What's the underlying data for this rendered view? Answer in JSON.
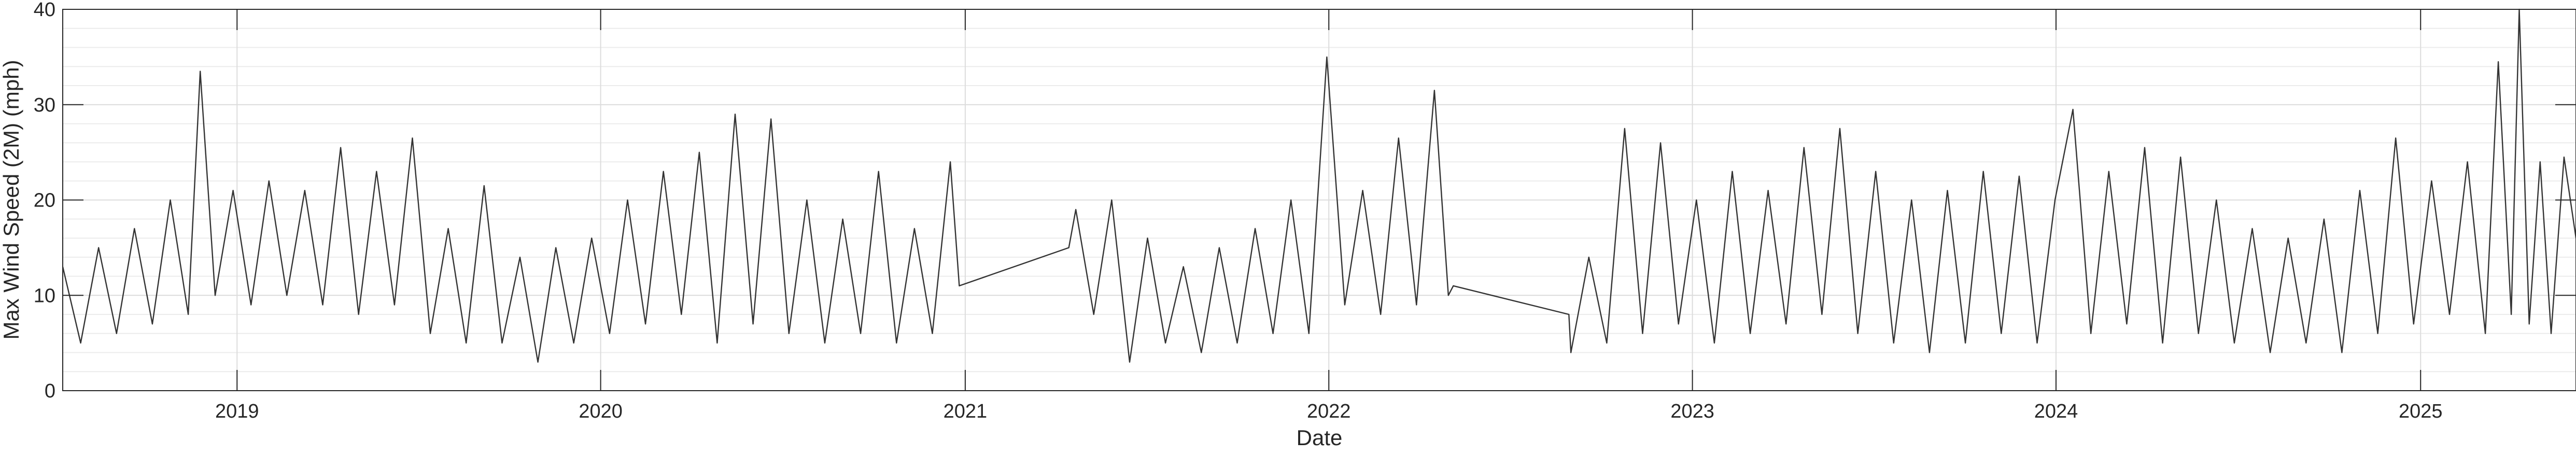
{
  "chart_data": {
    "type": "line",
    "title": "",
    "xlabel": "Date",
    "ylabel": "Max Wind Speed (2M) (mph)",
    "ylim": [
      0,
      40
    ],
    "xlim": [
      "2018-07-10",
      "2025-06-06"
    ],
    "y_ticks": [
      "0",
      "10",
      "20",
      "30",
      "40"
    ],
    "x_ticks": [
      {
        "date": "2019-01-01",
        "label": "2019"
      },
      {
        "date": "2020-01-01",
        "label": "2020"
      },
      {
        "date": "2021-01-01",
        "label": "2021"
      },
      {
        "date": "2022-01-01",
        "label": "2022"
      },
      {
        "date": "2023-01-01",
        "label": "2023"
      },
      {
        "date": "2024-01-01",
        "label": "2024"
      },
      {
        "date": "2025-01-01",
        "label": "2025"
      }
    ],
    "grid": true,
    "minor_grid": true,
    "line_color": "#333333",
    "series": [
      {
        "values": [
          [
            "2018-07-10",
            13
          ],
          [
            "2018-07-28",
            5
          ],
          [
            "2018-08-15",
            15
          ],
          [
            "2018-09-02",
            6
          ],
          [
            "2018-09-20",
            17
          ],
          [
            "2018-10-08",
            7
          ],
          [
            "2018-10-26",
            20
          ],
          [
            "2018-11-13",
            8
          ],
          [
            "2018-11-25",
            33.5
          ],
          [
            "2018-12-10",
            10
          ],
          [
            "2018-12-28",
            21
          ],
          [
            "2019-01-15",
            9
          ],
          [
            "2019-02-02",
            22
          ],
          [
            "2019-02-20",
            10
          ],
          [
            "2019-03-10",
            21
          ],
          [
            "2019-03-28",
            9
          ],
          [
            "2019-04-15",
            25.5
          ],
          [
            "2019-05-03",
            8
          ],
          [
            "2019-05-21",
            23
          ],
          [
            "2019-06-08",
            9
          ],
          [
            "2019-06-26",
            26.5
          ],
          [
            "2019-07-14",
            6
          ],
          [
            "2019-08-01",
            17
          ],
          [
            "2019-08-19",
            5
          ],
          [
            "2019-09-06",
            21.5
          ],
          [
            "2019-09-24",
            5
          ],
          [
            "2019-10-12",
            14
          ],
          [
            "2019-10-30",
            3
          ],
          [
            "2019-11-17",
            15
          ],
          [
            "2019-12-05",
            5
          ],
          [
            "2019-12-23",
            16
          ],
          [
            "2020-01-10",
            6
          ],
          [
            "2020-01-28",
            20
          ],
          [
            "2020-02-15",
            7
          ],
          [
            "2020-03-04",
            23
          ],
          [
            "2020-03-22",
            8
          ],
          [
            "2020-04-09",
            25
          ],
          [
            "2020-04-27",
            5
          ],
          [
            "2020-05-15",
            29
          ],
          [
            "2020-06-02",
            7
          ],
          [
            "2020-06-20",
            28.5
          ],
          [
            "2020-07-08",
            6
          ],
          [
            "2020-07-26",
            20
          ],
          [
            "2020-08-13",
            5
          ],
          [
            "2020-08-31",
            18
          ],
          [
            "2020-09-18",
            6
          ],
          [
            "2020-10-06",
            23
          ],
          [
            "2020-10-24",
            5
          ],
          [
            "2020-11-11",
            17
          ],
          [
            "2020-11-29",
            6
          ],
          [
            "2020-12-17",
            24
          ],
          [
            "2020-12-26",
            11
          ],
          [
            "2021-04-15",
            15
          ],
          [
            "2021-04-22",
            19
          ],
          [
            "2021-05-10",
            8
          ],
          [
            "2021-05-28",
            20
          ],
          [
            "2021-06-15",
            3
          ],
          [
            "2021-07-03",
            16
          ],
          [
            "2021-07-21",
            5
          ],
          [
            "2021-08-08",
            13
          ],
          [
            "2021-08-26",
            4
          ],
          [
            "2021-09-13",
            15
          ],
          [
            "2021-10-01",
            5
          ],
          [
            "2021-10-19",
            17
          ],
          [
            "2021-11-06",
            6
          ],
          [
            "2021-11-24",
            20
          ],
          [
            "2021-12-12",
            6
          ],
          [
            "2021-12-30",
            35
          ],
          [
            "2022-01-17",
            9
          ],
          [
            "2022-02-04",
            21
          ],
          [
            "2022-02-22",
            8
          ],
          [
            "2022-03-12",
            26.5
          ],
          [
            "2022-03-30",
            9
          ],
          [
            "2022-04-17",
            31.5
          ],
          [
            "2022-05-01",
            10
          ],
          [
            "2022-05-06",
            11
          ],
          [
            "2022-08-30",
            8
          ],
          [
            "2022-09-01",
            4
          ],
          [
            "2022-09-19",
            14
          ],
          [
            "2022-10-07",
            5
          ],
          [
            "2022-10-25",
            27.5
          ],
          [
            "2022-11-12",
            6
          ],
          [
            "2022-11-30",
            26
          ],
          [
            "2022-12-18",
            7
          ],
          [
            "2023-01-05",
            20
          ],
          [
            "2023-01-23",
            5
          ],
          [
            "2023-02-10",
            23
          ],
          [
            "2023-02-28",
            6
          ],
          [
            "2023-03-18",
            21
          ],
          [
            "2023-04-05",
            7
          ],
          [
            "2023-04-23",
            25.5
          ],
          [
            "2023-05-11",
            8
          ],
          [
            "2023-05-29",
            27.5
          ],
          [
            "2023-06-16",
            6
          ],
          [
            "2023-07-04",
            23
          ],
          [
            "2023-07-22",
            5
          ],
          [
            "2023-08-09",
            20
          ],
          [
            "2023-08-27",
            4
          ],
          [
            "2023-09-14",
            21
          ],
          [
            "2023-10-02",
            5
          ],
          [
            "2023-10-20",
            23
          ],
          [
            "2023-11-07",
            6
          ],
          [
            "2023-11-25",
            22.5
          ],
          [
            "2023-12-13",
            5
          ],
          [
            "2023-12-31",
            20
          ],
          [
            "2024-01-18",
            29.5
          ],
          [
            "2024-02-05",
            6
          ],
          [
            "2024-02-23",
            23
          ],
          [
            "2024-03-12",
            7
          ],
          [
            "2024-03-30",
            25.5
          ],
          [
            "2024-04-17",
            5
          ],
          [
            "2024-05-05",
            24.5
          ],
          [
            "2024-05-23",
            6
          ],
          [
            "2024-06-10",
            20
          ],
          [
            "2024-06-28",
            5
          ],
          [
            "2024-07-16",
            17
          ],
          [
            "2024-08-03",
            4
          ],
          [
            "2024-08-21",
            16
          ],
          [
            "2024-09-08",
            5
          ],
          [
            "2024-09-26",
            18
          ],
          [
            "2024-10-14",
            4
          ],
          [
            "2024-11-01",
            21
          ],
          [
            "2024-11-19",
            6
          ],
          [
            "2024-12-07",
            26.5
          ],
          [
            "2024-12-25",
            7
          ],
          [
            "2025-01-12",
            22
          ],
          [
            "2025-01-30",
            8
          ],
          [
            "2025-02-17",
            24
          ],
          [
            "2025-03-07",
            6
          ],
          [
            "2025-03-20",
            34.5
          ],
          [
            "2025-04-02",
            8
          ],
          [
            "2025-04-10",
            40
          ],
          [
            "2025-04-20",
            7
          ],
          [
            "2025-05-01",
            24
          ],
          [
            "2025-05-12",
            6
          ],
          [
            "2025-05-25",
            24.5
          ],
          [
            "2025-06-06",
            16
          ]
        ]
      }
    ]
  }
}
